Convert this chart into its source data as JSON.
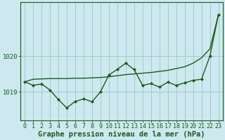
{
  "background_color": "#cde8ee",
  "grid_color": "#a0cccc",
  "line_color": "#1a5c1a",
  "xlabel": "Graphe pression niveau de la mer (hPa)",
  "xlabel_fontsize": 7.5,
  "tick_fontsize": 6.0,
  "ytick_labels": [
    1019,
    1020
  ],
  "ylim": [
    1018.2,
    1021.5
  ],
  "xlim": [
    -0.5,
    23.5
  ],
  "main_x": [
    0,
    1,
    2,
    3,
    4,
    5,
    6,
    7,
    8,
    9,
    10,
    11,
    12,
    13,
    14,
    15,
    16,
    17,
    18,
    19,
    20,
    21,
    22,
    23
  ],
  "main_y": [
    1019.28,
    1019.18,
    1019.22,
    1019.05,
    1018.78,
    1018.55,
    1018.73,
    1018.8,
    1018.72,
    1019.0,
    1019.47,
    1019.63,
    1019.8,
    1019.62,
    1019.18,
    1019.23,
    1019.13,
    1019.27,
    1019.18,
    1019.25,
    1019.32,
    1019.35,
    1020.0,
    1021.15
  ],
  "smooth_x": [
    0,
    1,
    2,
    3,
    4,
    5,
    6,
    7,
    8,
    9,
    10,
    11,
    12,
    13,
    14,
    15,
    16,
    17,
    18,
    19,
    20,
    21,
    22,
    23
  ],
  "smooth_y": [
    1019.28,
    1019.35,
    1019.36,
    1019.37,
    1019.37,
    1019.37,
    1019.38,
    1019.38,
    1019.39,
    1019.4,
    1019.42,
    1019.45,
    1019.48,
    1019.5,
    1019.52,
    1019.54,
    1019.57,
    1019.6,
    1019.65,
    1019.7,
    1019.8,
    1019.95,
    1020.2,
    1021.15
  ]
}
